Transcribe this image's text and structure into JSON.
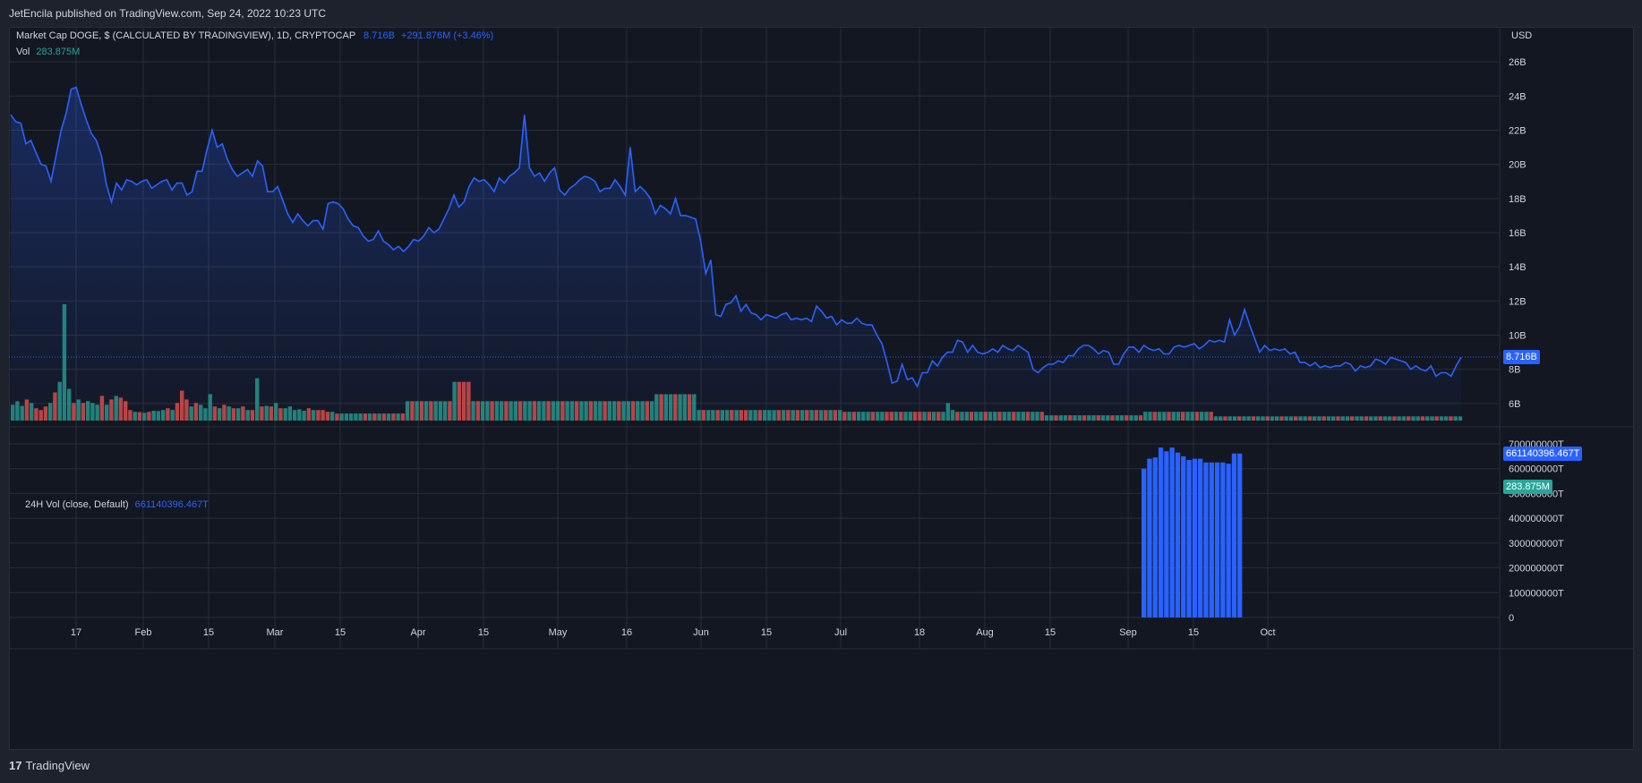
{
  "page": {
    "published": "JetEncila published on TradingView.com, Sep 24, 2022 10:23 UTC",
    "footer_brand": "TradingView",
    "colors": {
      "background": "#1e222d",
      "pane": "#131722",
      "line": "#2962ff",
      "up": "#26a69a",
      "down": "#ef5350",
      "grid": "#2a2e39"
    }
  },
  "legend": {
    "symbol": "Market Cap DOGE, $ (CALCULATED BY TRADINGVIEW), 1D, CRYPTOCAP",
    "last": "8.716B",
    "change": "+291.876M (+3.46%)",
    "vol_label": "Vol",
    "vol_value": "283.875M",
    "indicator_label": "24H Vol (close, Default)",
    "indicator_value": "661140396.467T"
  },
  "axis": {
    "currency": "USD",
    "price_tag": "8.716B",
    "vol_tag": "283.875M",
    "indicator_tag": "661140396.467T"
  },
  "chart_data": [
    {
      "type": "area",
      "series": [
        {
          "values": [
            22.9,
            22.5,
            22.4,
            21.2,
            21.4,
            20.7,
            20.0,
            19.9,
            19.0,
            20.5,
            22.0,
            23.0,
            24.4,
            24.5,
            23.5,
            22.6,
            21.8,
            21.4,
            20.5,
            18.8,
            17.8,
            18.9,
            18.5,
            19.1,
            19.0,
            18.8,
            19.0,
            19.1,
            18.6,
            18.8,
            19.0,
            19.1,
            18.5,
            18.9,
            18.9,
            18.2,
            18.4,
            19.6,
            19.6,
            20.9,
            22.0,
            21.0,
            21.2,
            20.3,
            19.7,
            19.3,
            19.5,
            19.7,
            19.3,
            20.2,
            19.9,
            18.4,
            18.4,
            18.7,
            17.9,
            17.1,
            16.6,
            17.1,
            16.7,
            16.4,
            16.7,
            16.7,
            16.2,
            17.7,
            17.8,
            17.7,
            17.4,
            16.8,
            16.4,
            16.3,
            15.8,
            15.5,
            15.6,
            16.1,
            15.5,
            15.3,
            15.0,
            15.2,
            14.9,
            15.2,
            15.6,
            15.5,
            15.8,
            16.3,
            16.0,
            16.2,
            16.8,
            17.4,
            18.2,
            17.5,
            17.8,
            18.7,
            19.2,
            19.0,
            19.1,
            18.8,
            18.4,
            19.2,
            18.9,
            19.3,
            19.5,
            19.8,
            22.9,
            19.8,
            19.3,
            19.5,
            19.0,
            19.5,
            19.8,
            18.5,
            18.2,
            18.6,
            18.8,
            19.1,
            19.3,
            19.2,
            19.0,
            18.4,
            18.6,
            18.6,
            19.1,
            18.7,
            18.2,
            21.0,
            18.4,
            18.7,
            18.4,
            18.0,
            17.1,
            17.6,
            17.4,
            17.1,
            18.0,
            17.0,
            17.0,
            16.9,
            16.8,
            15.5,
            13.6,
            14.4,
            11.2,
            11.1,
            11.8,
            11.9,
            12.3,
            11.4,
            11.8,
            11.3,
            11.2,
            10.9,
            11.2,
            11.1,
            11.0,
            11.2,
            11.3,
            10.9,
            11.0,
            10.9,
            11.0,
            10.8,
            11.7,
            11.4,
            11.0,
            11.1,
            10.6,
            10.9,
            10.7,
            10.7,
            11.0,
            10.7,
            10.6,
            10.6,
            10.0,
            9.5,
            8.4,
            7.2,
            7.3,
            8.3,
            7.4,
            7.5,
            7.0,
            7.8,
            7.8,
            8.5,
            8.2,
            8.7,
            9.0,
            9.0,
            9.7,
            9.6,
            9.0,
            9.4,
            9.0,
            8.9,
            9.0,
            9.2,
            9.0,
            9.4,
            9.2,
            9.1,
            9.4,
            9.2,
            9.0,
            8.0,
            7.8,
            8.1,
            8.3,
            8.3,
            8.5,
            8.4,
            8.8,
            8.8,
            9.2,
            9.4,
            9.4,
            9.2,
            8.9,
            9.1,
            9.0,
            8.3,
            8.3,
            8.9,
            9.3,
            9.3,
            9.0,
            9.4,
            9.2,
            9.1,
            9.2,
            8.9,
            8.9,
            9.3,
            9.4,
            9.3,
            9.4,
            9.5,
            9.2,
            9.4,
            9.7,
            9.6,
            9.7,
            9.6,
            10.9,
            10.0,
            10.5,
            11.5,
            10.6,
            9.8,
            9.0,
            9.4,
            9.1,
            9.2,
            9.1,
            9.2,
            8.9,
            9.0,
            8.4,
            8.4,
            8.2,
            8.4,
            8.1,
            8.2,
            8.1,
            8.2,
            8.2,
            8.4,
            8.3,
            7.9,
            8.2,
            8.1,
            8.2,
            8.6,
            8.5,
            8.3,
            8.7,
            8.6,
            8.5,
            8.4,
            8.0,
            8.2,
            8.0,
            7.9,
            8.2,
            7.6,
            7.8,
            7.8,
            7.6,
            8.2,
            8.7
          ]
        }
      ],
      "ylabel": "USD",
      "y_ticks": [
        "6B",
        "8B",
        "10B",
        "12B",
        "14B",
        "16B",
        "18B",
        "20B",
        "22B",
        "24B",
        "26B"
      ],
      "ylim": [
        5,
        27
      ],
      "x_ticks": [
        "17",
        "Feb",
        "15",
        "Mar",
        "15",
        "Apr",
        "15",
        "May",
        "16",
        "Jun",
        "15",
        "Jul",
        "18",
        "Aug",
        "15",
        "Sep",
        "15",
        "Oct"
      ],
      "last_value": 8.716
    },
    {
      "type": "bar",
      "name": "Vol",
      "pattern": [
        [
          6,
          "u"
        ],
        [
          4,
          "d"
        ],
        [
          3,
          "u"
        ],
        [
          5,
          "d"
        ],
        [
          8,
          "u"
        ],
        [
          1,
          "d"
        ],
        [
          13,
          "d"
        ],
        [
          2,
          "d"
        ],
        [
          1,
          "u"
        ],
        [
          1,
          "u"
        ],
        [
          1,
          "d"
        ],
        [
          1,
          "u"
        ],
        [
          1,
          "d"
        ],
        [
          1,
          "u"
        ],
        [
          1,
          "d"
        ],
        [
          1,
          "u"
        ],
        [
          1,
          "d"
        ],
        [
          2,
          "u"
        ]
      ],
      "values": [
        4.5,
        5.5,
        4.2,
        6.0,
        5.0,
        3.5,
        3.0,
        4.0,
        5.0,
        8.0,
        11.0,
        33.0,
        9.0,
        5.0,
        6.0,
        5.0,
        5.5,
        5.0,
        4.5,
        7.0,
        4.5,
        6.0,
        7.0,
        6.5,
        5.5,
        3.0,
        2.5,
        2.4,
        2.2,
        2.5,
        2.8,
        2.7,
        3.0,
        3.5,
        3.0,
        5.0,
        8.5,
        6.0,
        4.0,
        5.0,
        4.5,
        3.5,
        7.5,
        4.0,
        3.5,
        4.5,
        4.0,
        3.5,
        3.5,
        4.0,
        3.0,
        3.0,
        12.0,
        4.0,
        4.2,
        4.0,
        5.0,
        3.5,
        3.5,
        4.0,
        3.0,
        3.2,
        2.8,
        3.5,
        3.0,
        3.0,
        3.0,
        2.5,
        2.5,
        2.0,
        2.0,
        2.0,
        2.0,
        2.0,
        2.0,
        2.0,
        2.0,
        2.0,
        2.0,
        2.0,
        2.0,
        2.0,
        2.0,
        2.0,
        5.5,
        5.5,
        5.5,
        5.5,
        5.5,
        5.5,
        5.5,
        5.5,
        5.5,
        5.5,
        11.0,
        11.0,
        11.0,
        11.0,
        5.5,
        5.5,
        5.5,
        5.5,
        5.5,
        5.5,
        5.5,
        5.5,
        5.5,
        5.5,
        5.5,
        5.5,
        5.5,
        5.5,
        5.5,
        5.5,
        5.5,
        5.5,
        5.5,
        5.5,
        5.5,
        5.5,
        5.5,
        5.5,
        5.5,
        5.5,
        5.5,
        5.5,
        5.5,
        5.5,
        5.5,
        5.5,
        5.5,
        5.5,
        5.5,
        5.5,
        5.5,
        5.5,
        5.5,
        7.5,
        7.5,
        7.5,
        7.5,
        7.5,
        7.5,
        7.5,
        7.5,
        7.5,
        3.0,
        3.0,
        3.0,
        3.0,
        3.0,
        3.0,
        3.0,
        3.0,
        3.0,
        3.0,
        3.0,
        3.0,
        3.0,
        3.0,
        3.0,
        3.0,
        3.0,
        3.0,
        3.0,
        3.0,
        3.0,
        3.0,
        3.0,
        3.0,
        3.0,
        3.0,
        3.0,
        3.0,
        3.0,
        3.0,
        3.0,
        2.5,
        2.5,
        2.5,
        2.5,
        2.5,
        2.5,
        2.5,
        2.5,
        2.5,
        2.5,
        2.5,
        2.5,
        2.5,
        2.5,
        2.5,
        2.5,
        2.5,
        2.5,
        2.5,
        2.5,
        2.5,
        2.5,
        5.0,
        3.0,
        2.5,
        2.5,
        2.5,
        2.5,
        2.5,
        2.5,
        2.5,
        2.5,
        2.5,
        2.5,
        2.5,
        2.5,
        2.5,
        2.5,
        2.5,
        2.5,
        2.5,
        2.5,
        2.5,
        1.5,
        1.5,
        1.5,
        1.5,
        1.5,
        1.5,
        1.5,
        1.5,
        1.5,
        1.5,
        1.5,
        1.5,
        1.5,
        1.5,
        1.5,
        1.5,
        1.5,
        1.5,
        1.5,
        1.5,
        1.5,
        2.5,
        2.5,
        2.5,
        2.5,
        2.5,
        2.5,
        2.5,
        2.5,
        2.5,
        2.5,
        2.5,
        2.5,
        2.5,
        2.5,
        2.5,
        1.2,
        1.2,
        1.2,
        1.2,
        1.2,
        1.2,
        1.2,
        1.2,
        1.2,
        1.2,
        1.2,
        1.2,
        1.2,
        1.2,
        1.2,
        1.2,
        1.2,
        1.2,
        1.2,
        1.2,
        1.2,
        1.2,
        1.2,
        1.2,
        1.2,
        1.2,
        1.2,
        1.2,
        1.2,
        1.2,
        1.2,
        1.2,
        1.2,
        1.2,
        1.2,
        1.2,
        1.2,
        1.2,
        1.2,
        1.2,
        1.2,
        1.2,
        1.2,
        1.2,
        1.2,
        1.2,
        1.2,
        1.2,
        1.2,
        1.2,
        1.2,
        1.2,
        1.2
      ],
      "last_value": "283.875M"
    },
    {
      "type": "bar",
      "name": "24H Vol (close, Default)",
      "ylim": [
        0,
        700000000
      ],
      "y_ticks": [
        "0",
        "100000000T",
        "200000000T",
        "300000000T",
        "400000000T",
        "500000000T",
        "600000000T",
        "700000000T"
      ],
      "values": [
        600000000,
        640000000,
        645000000,
        685000000,
        670000000,
        685000000,
        665000000,
        650000000,
        635000000,
        640000000,
        640000000,
        625000000,
        625000000,
        625000000,
        625000000,
        620000000,
        661000000,
        661140396
      ]
    }
  ]
}
